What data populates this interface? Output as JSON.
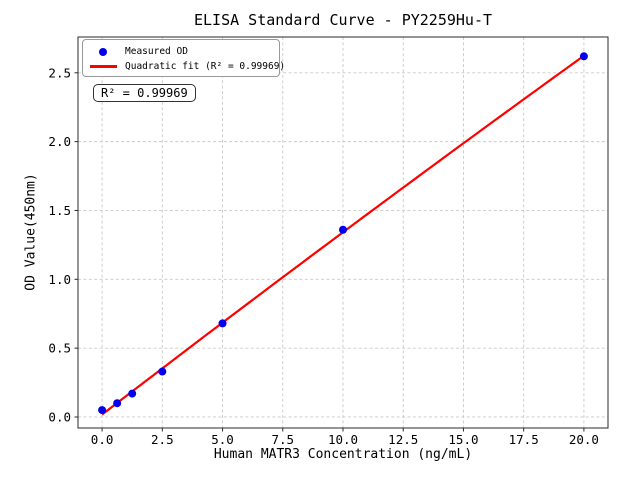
{
  "figure": {
    "background": "#ffffff"
  },
  "annotation": {
    "text": "R² = 0.99969"
  },
  "chart_data": {
    "type": "scatter",
    "title": "ELISA Standard Curve - PY2259Hu-T",
    "xlabel": "Human MATR3 Concentration (ng/mL)",
    "ylabel": "OD Value(450nm)",
    "x_ticks": [
      0.0,
      2.5,
      5.0,
      7.5,
      10.0,
      12.5,
      15.0,
      17.5,
      20.0
    ],
    "y_ticks": [
      0.0,
      0.5,
      1.0,
      1.5,
      2.0,
      2.5
    ],
    "xlim": [
      -1,
      21
    ],
    "ylim": [
      -0.08,
      2.76
    ],
    "grid": true,
    "legend_position": "upper left",
    "r_squared": 0.99969,
    "series": [
      {
        "name": "Measured OD",
        "type": "scatter",
        "color": "#0000EE",
        "points": [
          [
            0,
            0.05
          ],
          [
            0.625,
            0.1
          ],
          [
            1.25,
            0.17
          ],
          [
            2.5,
            0.33
          ],
          [
            5,
            0.68
          ],
          [
            10,
            1.36
          ],
          [
            20,
            2.62
          ]
        ]
      },
      {
        "name": "Quadratic fit (R² = 0.99969)",
        "type": "line",
        "color": "#FF0000",
        "fit": "quadratic"
      }
    ],
    "colors": {
      "grid": "#c9c9c9",
      "spine": "#2a2a2a",
      "text": "#000000"
    }
  }
}
